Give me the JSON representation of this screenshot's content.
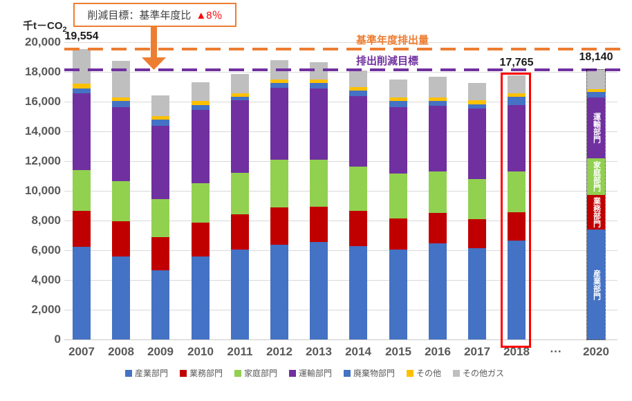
{
  "axis": {
    "unit_main": "千t－CO",
    "unit_sub": "2",
    "y_min": 0,
    "y_max": 20000,
    "y_step": 2000
  },
  "annotation_box": {
    "text": "削減目標：基準年度比",
    "highlight": "▲8％"
  },
  "ref_lines": [
    {
      "name": "baseline-emissions",
      "label": "基準年度排出量",
      "value": 19554,
      "color": "#ED7D31"
    },
    {
      "name": "reduction-target",
      "label": "排出削減目標",
      "value": 18140,
      "color": "#7030A0"
    }
  ],
  "value_labels": [
    {
      "category": "2007",
      "text": "19,554"
    },
    {
      "category": "2018",
      "text": "17,765"
    },
    {
      "category": "2020",
      "text": "18,140"
    }
  ],
  "highlight_box": {
    "category": "2018",
    "color": "#FF0000"
  },
  "projection": {
    "category": "2020",
    "border": "dotted"
  },
  "in_bar_labels": {
    "category": "2020",
    "series": [
      "産業部門",
      "業務部門",
      "家庭部門",
      "運輸部門"
    ]
  },
  "legend": [
    {
      "label": "産業部門",
      "color": "#4472C4"
    },
    {
      "label": "業務部門",
      "color": "#C00000"
    },
    {
      "label": "家庭部門",
      "color": "#92D050"
    },
    {
      "label": "運輸部門",
      "color": "#7030A0"
    },
    {
      "label": "廃棄物部門",
      "color": "#4472C4"
    },
    {
      "label": "その他",
      "color": "#FFC000"
    },
    {
      "label": "その他ガス",
      "color": "#BFBFBF"
    }
  ],
  "chart_data": {
    "type": "bar",
    "stacked": true,
    "title": "",
    "xlabel": "",
    "ylabel": "千t－CO2",
    "ylim": [
      0,
      20000
    ],
    "ytick_step": 2000,
    "grid": true,
    "legend_position": "bottom",
    "categories": [
      "2007",
      "2008",
      "2009",
      "2010",
      "2011",
      "2012",
      "2013",
      "2014",
      "2015",
      "2016",
      "2017",
      "2018",
      "···",
      "2020"
    ],
    "series": [
      {
        "name": "産業部門",
        "color": "#4472C4",
        "values": [
          6220,
          5570,
          4640,
          5570,
          6060,
          6390,
          6560,
          6270,
          6060,
          6450,
          6140,
          6640,
          null,
          7380
        ]
      },
      {
        "name": "業務部門",
        "color": "#C00000",
        "values": [
          2445,
          2380,
          2240,
          2280,
          2360,
          2510,
          2370,
          2380,
          2090,
          2050,
          1940,
          1930,
          null,
          2355
        ]
      },
      {
        "name": "家庭部門",
        "color": "#92D050",
        "values": [
          2745,
          2690,
          2550,
          2660,
          2800,
          3210,
          3170,
          2990,
          3030,
          2790,
          2710,
          2720,
          null,
          2450
        ]
      },
      {
        "name": "運輸部門",
        "color": "#7030A0",
        "values": [
          5150,
          5000,
          4930,
          4930,
          4870,
          4810,
          4800,
          4730,
          4450,
          4420,
          4730,
          4490,
          null,
          4100
        ]
      },
      {
        "name": "廃棄物部門",
        "color": "#4472C4",
        "values": [
          320,
          390,
          420,
          340,
          250,
          350,
          350,
          390,
          400,
          320,
          310,
          550,
          null,
          390
        ]
      },
      {
        "name": "その他",
        "color": "#FFC000",
        "values": [
          340,
          240,
          230,
          250,
          220,
          220,
          220,
          230,
          260,
          260,
          260,
          230,
          null,
          185
        ]
      },
      {
        "name": "その他ガス",
        "color": "#BFBFBF",
        "values": [
          2334,
          2470,
          1390,
          1270,
          1310,
          1300,
          1180,
          1110,
          1210,
          1390,
          1160,
          1205,
          null,
          1280
        ]
      }
    ],
    "totals": [
      19554,
      18740,
      16400,
      17300,
      17870,
      18790,
      18650,
      18100,
      17500,
      17680,
      17250,
      17765,
      null,
      18140
    ],
    "reference_lines": [
      {
        "label": "基準年度排出量",
        "value": 19554
      },
      {
        "label": "排出削減目標",
        "value": 18140
      }
    ]
  }
}
